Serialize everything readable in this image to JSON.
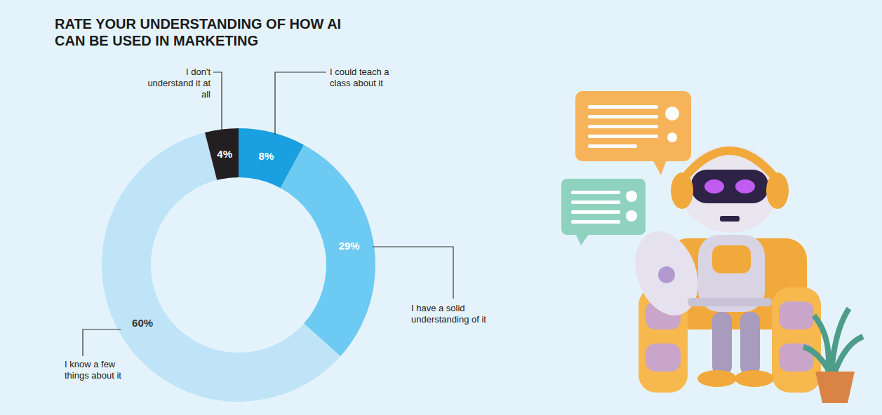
{
  "chart_data": {
    "type": "pie",
    "title": "RATE YOUR UNDERSTANDING OF HOW AI CAN BE USED IN MARKETING",
    "categories": [
      "I could teach a class about it",
      "I have a solid understanding of it",
      "I know a few things about it",
      "I don't understand it at all"
    ],
    "values": [
      8,
      29,
      60,
      4
    ],
    "value_labels": [
      "8%",
      "29%",
      "60%",
      "4%"
    ],
    "colors": [
      "#1a9fe0",
      "#6dcaf2",
      "#bfe4f7",
      "#231f20"
    ],
    "data_labels": true
  }
}
